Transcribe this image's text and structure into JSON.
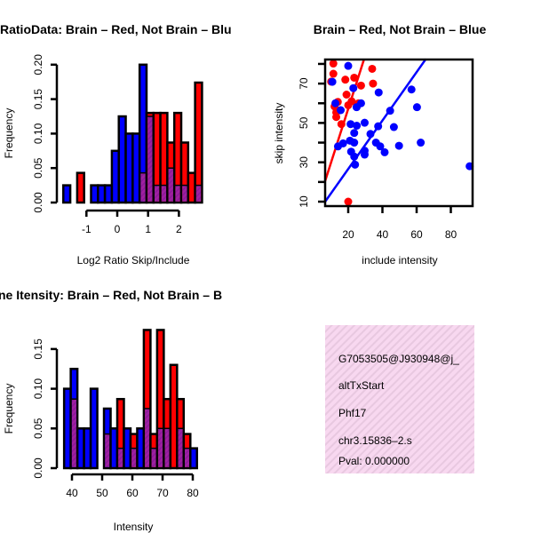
{
  "colors": {
    "brain": "#ff0000",
    "not_brain": "#0000ff",
    "overlap": "#a020a0",
    "pval": "#b00000",
    "box_bg": "#f8d8f0"
  },
  "chart_data": [
    {
      "type": "bar",
      "title": "RatioData: Brain – Red, Not Brain – Blu",
      "xlabel": "Log2 Ratio Skip/Include",
      "ylabel": "Frequency",
      "xticks": [
        "-1",
        "0",
        "1",
        "2"
      ],
      "xtick_values": [
        -1,
        0,
        1,
        2
      ],
      "yticks": [
        "0.00",
        "0.05",
        "0.10",
        "0.15",
        "0.20"
      ],
      "ytick_values": [
        0,
        0.05,
        0.1,
        0.15,
        0.2
      ],
      "bin_start": -1.75,
      "bin_width": 0.225,
      "series": [
        {
          "name": "Not Brain",
          "color": "blue",
          "values": [
            0.025,
            0,
            0,
            0,
            0.025,
            0.025,
            0.025,
            0.075,
            0.125,
            0.1,
            0.1,
            0.2,
            0.125,
            0.025,
            0.025,
            0.05,
            0.025,
            0.025,
            0,
            0.025
          ]
        },
        {
          "name": "Brain",
          "color": "red",
          "values": [
            0,
            0,
            0.043,
            0,
            0,
            0,
            0,
            0,
            0,
            0,
            0,
            0.043,
            0.13,
            0.13,
            0.13,
            0.087,
            0.13,
            0.087,
            0.043,
            0.174
          ]
        }
      ]
    },
    {
      "type": "scatter",
      "title": "Brain – Red, Not Brain – Blue",
      "xlabel": "include intensity",
      "ylabel": "skip intensity",
      "xticks": [
        "20",
        "40",
        "60",
        "80"
      ],
      "xtick_values": [
        20,
        40,
        60,
        80
      ],
      "yticks": [
        "10",
        "30",
        "50",
        "70"
      ],
      "ytick_values": [
        10,
        30,
        50,
        70
      ],
      "xlim": [
        6,
        92
      ],
      "ylim": [
        8,
        83
      ],
      "series": [
        {
          "name": "Brain",
          "color": "red",
          "points": [
            [
              11.3,
              80.2
            ],
            [
              11.3,
              75
            ],
            [
              10,
              71
            ],
            [
              18.3,
              72
            ],
            [
              23.5,
              73
            ],
            [
              34,
              77.5
            ],
            [
              34.5,
              70
            ],
            [
              27.5,
              69
            ],
            [
              19,
              64.4
            ],
            [
              13.9,
              60.7
            ],
            [
              20,
              59
            ],
            [
              25,
              58.4
            ],
            [
              12,
              58.4
            ],
            [
              13,
              55.4
            ],
            [
              13,
              53
            ],
            [
              16,
              49.4
            ],
            [
              20,
              10
            ],
            [
              22,
              61
            ],
            [
              26,
              60
            ]
          ],
          "fit": [
            [
              6.5,
              20.5
            ],
            [
              29.3,
              82.5
            ]
          ]
        },
        {
          "name": "Not Brain",
          "color": "blue",
          "points": [
            [
              20,
              79
            ],
            [
              10.7,
              70.9
            ],
            [
              23,
              67.7
            ],
            [
              37.8,
              65.5
            ],
            [
              57,
              67
            ],
            [
              60.2,
              58
            ],
            [
              12.5,
              60
            ],
            [
              15.6,
              56.5
            ],
            [
              24.9,
              58
            ],
            [
              27.5,
              60
            ],
            [
              44.5,
              56.2
            ],
            [
              21.4,
              49.4
            ],
            [
              25,
              48.6
            ],
            [
              29.6,
              50.1
            ],
            [
              37.5,
              48.3
            ],
            [
              46.7,
              47.9
            ],
            [
              23.5,
              44.9
            ],
            [
              33,
              44.4
            ],
            [
              36.2,
              40
            ],
            [
              38.7,
              38.1
            ],
            [
              41.3,
              35.1
            ],
            [
              49.7,
              38.4
            ],
            [
              62.4,
              40
            ],
            [
              23.5,
              40
            ],
            [
              21,
              41
            ],
            [
              17,
              39.6
            ],
            [
              14,
              38.1
            ],
            [
              21.7,
              35.4
            ],
            [
              23.5,
              32.9
            ],
            [
              29.6,
              35.9
            ],
            [
              29.6,
              33.9
            ],
            [
              24,
              28.8
            ],
            [
              91,
              28
            ]
          ],
          "fit": [
            [
              6.5,
              10
            ],
            [
              65.4,
              82.5
            ]
          ]
        }
      ]
    },
    {
      "type": "bar",
      "title": "ne Itensity: Brain – Red, Not Brain – B",
      "xlabel": "Intensity",
      "ylabel": "Frequency",
      "xticks": [
        "40",
        "50",
        "60",
        "70",
        "80"
      ],
      "xtick_values": [
        40,
        50,
        60,
        70,
        80
      ],
      "yticks": [
        "0.00",
        "0.05",
        "0.10",
        "0.15"
      ],
      "ytick_values": [
        0,
        0.05,
        0.1,
        0.15
      ],
      "bin_start": 37.4,
      "bin_width": 2.2,
      "series": [
        {
          "name": "Not Brain",
          "color": "blue",
          "values": [
            0.1,
            0.125,
            0.05,
            0.05,
            0.1,
            0,
            0.075,
            0.05,
            0.025,
            0.05,
            0.025,
            0.05,
            0.075,
            0.025,
            0.05,
            0.05,
            0,
            0.05,
            0.025,
            0.025
          ]
        },
        {
          "name": "Brain",
          "color": "red",
          "values": [
            0,
            0.087,
            0,
            0,
            0,
            0,
            0.043,
            0,
            0.087,
            0,
            0.043,
            0,
            0.174,
            0.043,
            0.174,
            0.087,
            0.13,
            0.087,
            0.043,
            0
          ]
        }
      ]
    }
  ],
  "info_box": {
    "lines": [
      "G7053505@J930948@j_",
      "altTxStart",
      "Phf17",
      "chr3.15836–2.s"
    ],
    "pval": "Pval: 0.000000"
  }
}
